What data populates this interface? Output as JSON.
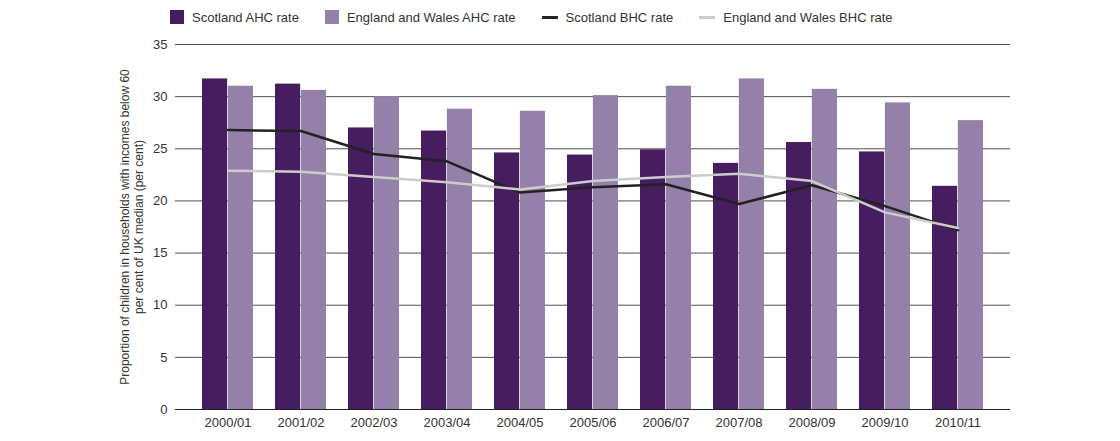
{
  "chart_data": {
    "type": "bar",
    "y_label": "Proportion of children in households with incomes below 60 per cent of UK median (per cent)",
    "categories": [
      "2000/01",
      "2001/02",
      "2002/03",
      "2003/04",
      "2004/05",
      "2005/06",
      "2006/07",
      "2007/08",
      "2008/09",
      "2009/10",
      "2010/11"
    ],
    "series": [
      {
        "name": "Scotland AHC rate",
        "type": "bar",
        "color": "#461d5f",
        "values": [
          31.7,
          31.2,
          27.0,
          26.7,
          24.6,
          24.4,
          24.9,
          23.6,
          25.6,
          24.7,
          21.4
        ]
      },
      {
        "name": "England and Wales AHC rate",
        "type": "bar",
        "color": "#9580a9",
        "values": [
          31.0,
          30.6,
          30.0,
          28.8,
          28.6,
          30.1,
          31.0,
          31.7,
          30.7,
          29.4,
          27.7
        ]
      },
      {
        "name": "Scotland BHC rate",
        "type": "line",
        "color": "#222222",
        "values": [
          26.8,
          26.7,
          24.5,
          23.8,
          20.8,
          21.3,
          21.6,
          19.7,
          21.5,
          19.5,
          17.2
        ]
      },
      {
        "name": "England and Wales BHC rate",
        "type": "line",
        "color": "#cccccc",
        "values": [
          22.9,
          22.8,
          22.3,
          21.8,
          21.1,
          21.9,
          22.3,
          22.6,
          21.9,
          18.9,
          17.4
        ]
      }
    ],
    "ylim": [
      0,
      35
    ],
    "yticks": [
      0,
      5,
      10,
      15,
      20,
      25,
      30,
      35
    ],
    "grid": true,
    "legend": "top"
  }
}
